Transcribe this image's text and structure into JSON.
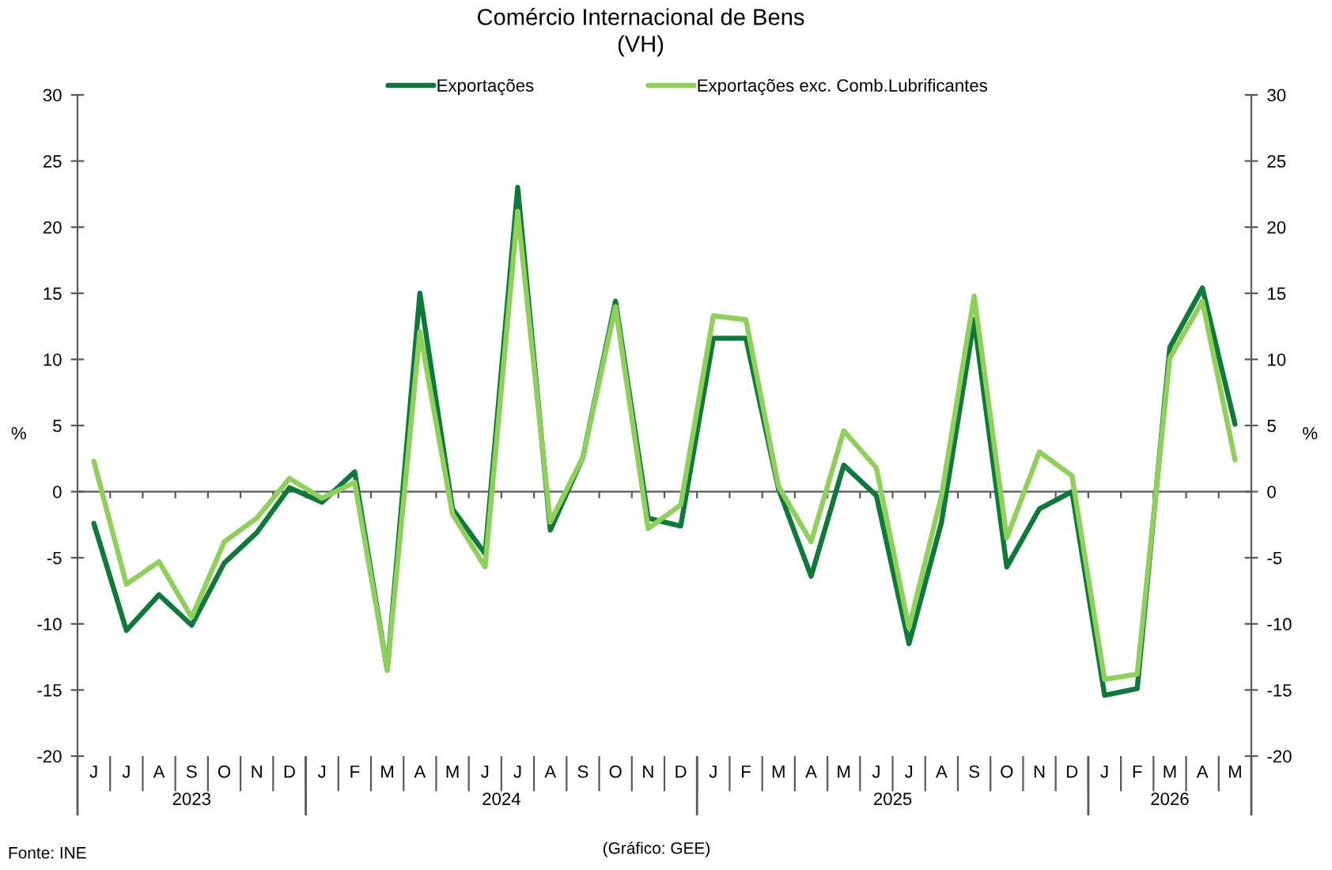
{
  "chart_data": {
    "type": "line",
    "title": "Comércio Internacional de Bens",
    "subtitle": "(VH)",
    "ylabel": "%",
    "y2label": "%",
    "categories": [
      "J",
      "J",
      "A",
      "S",
      "O",
      "N",
      "D",
      "J",
      "F",
      "M",
      "A",
      "M",
      "J",
      "J",
      "A",
      "S",
      "O",
      "N",
      "D",
      "J",
      "F",
      "M",
      "A",
      "M",
      "J",
      "J",
      "A",
      "S",
      "O",
      "N",
      "D",
      "J",
      "F",
      "M",
      "A",
      "M"
    ],
    "ylim": [
      -20,
      30
    ],
    "yticks": [
      -20,
      -15,
      -10,
      -5,
      0,
      5,
      10,
      15,
      20,
      25,
      30
    ],
    "y2lim": [
      -20,
      30
    ],
    "y2ticks": [
      -20,
      -15,
      -10,
      -5,
      0,
      5,
      10,
      15,
      20,
      25,
      30
    ],
    "series": [
      {
        "name": "Exportações",
        "color": "#0e7a3a",
        "values": [
          -2.4,
          -10.5,
          -7.8,
          -10.1,
          -5.4,
          -3.1,
          0.3,
          -0.8,
          1.5,
          -13.5,
          15.0,
          -1.3,
          -4.7,
          23.0,
          -2.9,
          2.6,
          14.4,
          -2.0,
          -2.6,
          11.6,
          11.6,
          0.2,
          -6.4,
          2.0,
          -0.3,
          -11.5,
          -2.3,
          13.0,
          -5.7,
          -1.3,
          0.0,
          -15.4,
          -14.9,
          10.9,
          15.4,
          5.1
        ]
      },
      {
        "name": "Exportações exc. Comb.Lubrificantes",
        "color": "#8fd05a",
        "values": [
          2.3,
          -7.0,
          -5.3,
          -9.5,
          -3.8,
          -2.0,
          1.0,
          -0.5,
          0.7,
          -13.5,
          12.1,
          -1.7,
          -5.7,
          21.2,
          -2.3,
          2.6,
          14.0,
          -2.8,
          -1.0,
          13.3,
          13.0,
          0.4,
          -3.8,
          4.6,
          1.8,
          -10.3,
          -0.3,
          14.8,
          -3.5,
          3.0,
          1.2,
          -14.2,
          -13.8,
          10.1,
          14.4,
          2.4
        ]
      }
    ],
    "legend": "top",
    "annotations": [
      "2023",
      "2024",
      "2025",
      "2026",
      "Fonte: INE",
      "(Gráfico: GEE)"
    ]
  }
}
